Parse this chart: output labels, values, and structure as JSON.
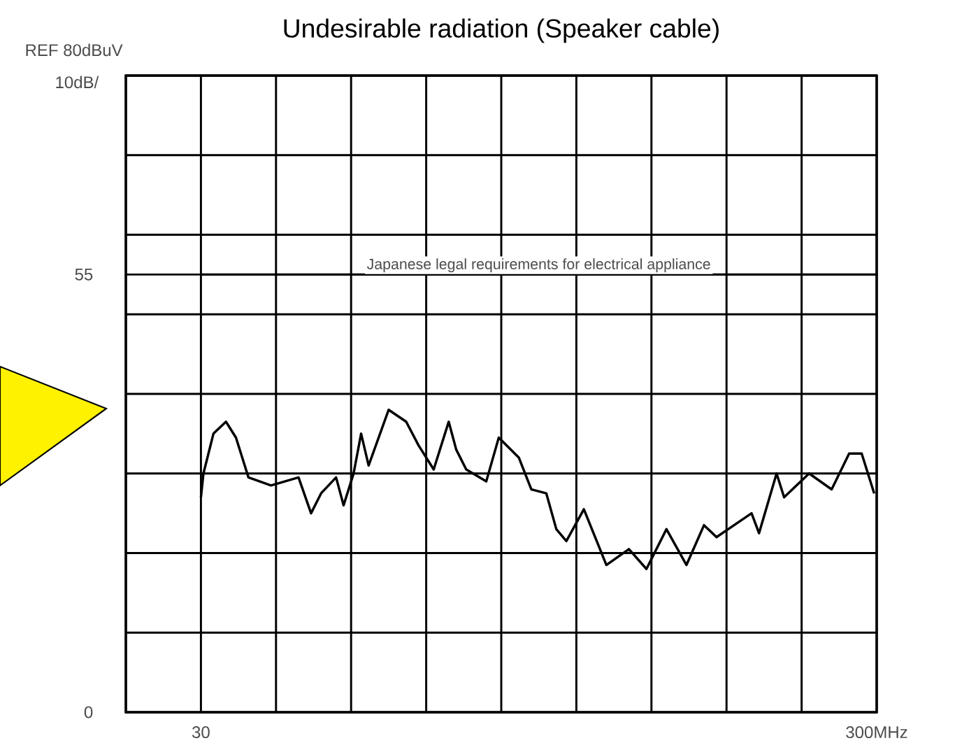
{
  "chart_data": {
    "type": "line",
    "title": "Undesirable radiation (Speaker cable)",
    "annotations": [
      "REF 80dBuV",
      "10dB/"
    ],
    "x": [
      30,
      31,
      35,
      40,
      44,
      49,
      58,
      69,
      74,
      78,
      84,
      87,
      91,
      94,
      97,
      105,
      112,
      117,
      123,
      129,
      132,
      136,
      144,
      149,
      157,
      162,
      168,
      172,
      176,
      183,
      192,
      201,
      208,
      216,
      224,
      231,
      236,
      250,
      253,
      260,
      263,
      273,
      282,
      289,
      294,
      299
    ],
    "series": [
      {
        "color": "#000000",
        "values": [
          27,
          30,
          35,
          36.5,
          34.5,
          29.5,
          28.5,
          29.5,
          25,
          27.5,
          29.5,
          26,
          30,
          35,
          31,
          38,
          36.5,
          33.5,
          30.5,
          36.5,
          33,
          30.5,
          29,
          34.5,
          32,
          28,
          27.5,
          23,
          21.5,
          25.5,
          18.5,
          20.5,
          18,
          23,
          18.5,
          23.5,
          22,
          25,
          22.5,
          30,
          27,
          30,
          28,
          32.5,
          32.5,
          27.5
        ]
      }
    ],
    "xlim": [
      0,
      300
    ],
    "ylim": [
      0,
      80
    ],
    "xticks": [
      {
        "value": 0,
        "label": null
      },
      30,
      {
        "value": 60,
        "label": null
      },
      {
        "value": 90,
        "label": null
      },
      {
        "value": 120,
        "label": null
      },
      {
        "value": 150,
        "label": null
      },
      {
        "value": 180,
        "label": null
      },
      {
        "value": 210,
        "label": null
      },
      {
        "value": 240,
        "label": null
      },
      {
        "value": 270,
        "label": null
      },
      {
        "value": 300,
        "label": "300MHz"
      }
    ],
    "yticks": [
      0,
      {
        "value": 10,
        "label": null
      },
      {
        "value": 20,
        "label": null
      },
      {
        "value": 30,
        "label": null
      },
      {
        "value": 40,
        "label": null
      },
      {
        "value": 50,
        "label": null
      },
      55,
      {
        "value": 60,
        "label": null
      },
      {
        "value": 70,
        "label": null
      },
      {
        "value": 80,
        "label": null
      }
    ],
    "grid": true,
    "ref_lines": [
      {
        "axis": "y",
        "value": 55,
        "label": "Japanese legal requirements for electrical appliance",
        "color": "#000000"
      }
    ]
  }
}
